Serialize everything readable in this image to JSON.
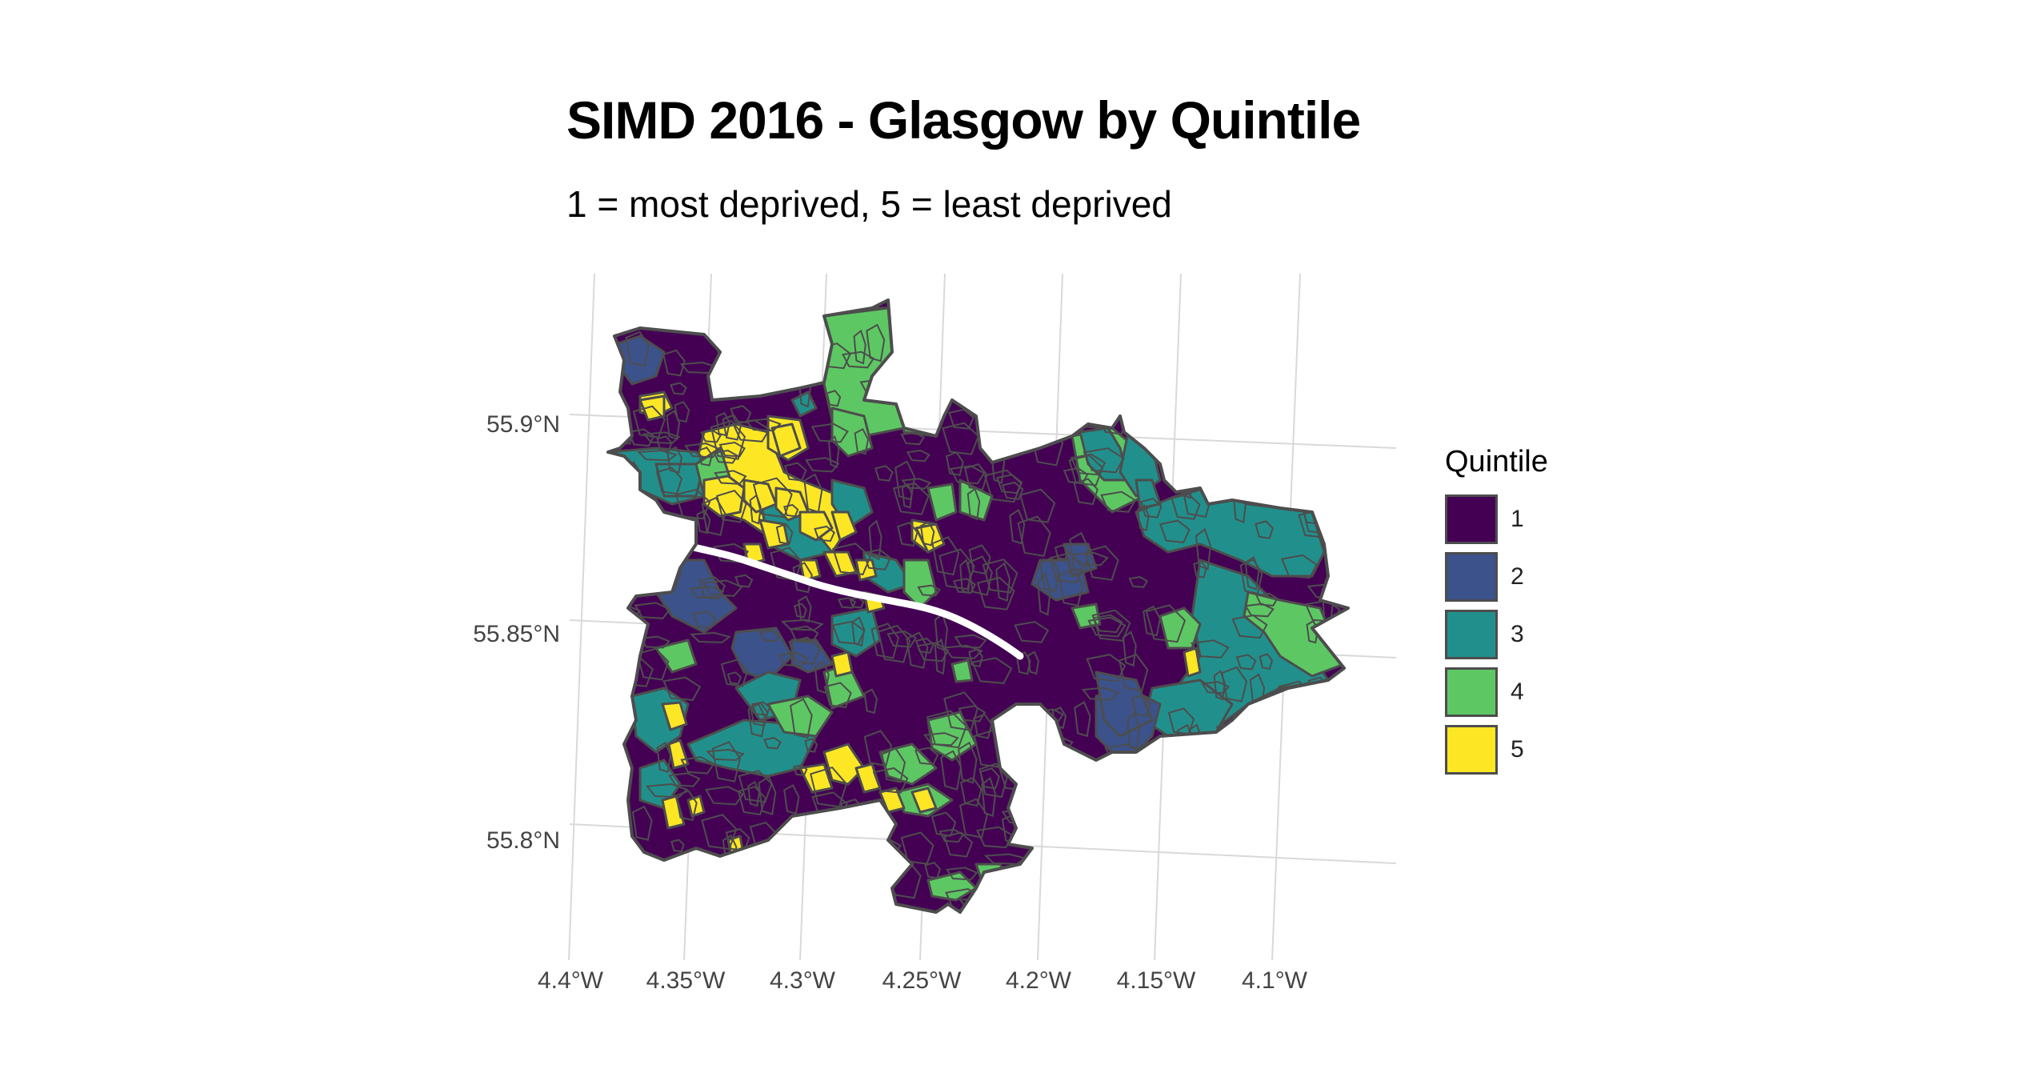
{
  "title": "SIMD 2016 - Glasgow by Quintile",
  "subtitle": "1 = most deprived, 5 = least deprived",
  "chart_data": {
    "type": "choropleth",
    "title": "SIMD 2016 - Glasgow by Quintile",
    "subtitle": "1 = most deprived, 5 = least deprived",
    "lon_ticks": [
      "4.4°W",
      "4.35°W",
      "4.3°W",
      "4.25°W",
      "4.2°W",
      "4.15°W",
      "4.1°W"
    ],
    "lat_ticks": [
      "55.8°N",
      "55.85°N",
      "55.9°N"
    ],
    "xlim": [
      -4.4,
      -4.07
    ],
    "ylim": [
      55.77,
      55.93
    ],
    "grid": true,
    "legend_position": "right",
    "legend": {
      "title": "Quintile",
      "entries": [
        {
          "label": "1",
          "color": "#440154"
        },
        {
          "label": "2",
          "color": "#3b528b"
        },
        {
          "label": "3",
          "color": "#21908c"
        },
        {
          "label": "4",
          "color": "#5dc863"
        },
        {
          "label": "5",
          "color": "#fde725"
        }
      ]
    },
    "border_color": "#4d4d4d"
  }
}
